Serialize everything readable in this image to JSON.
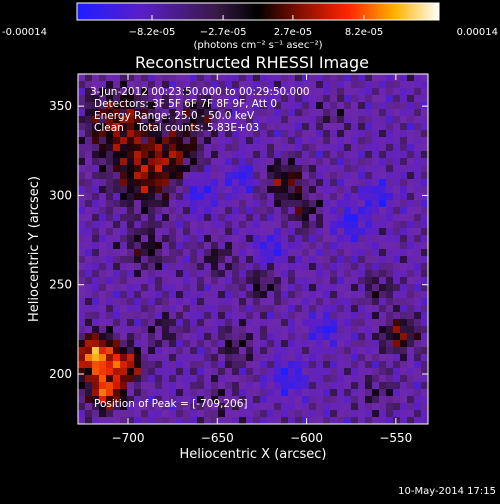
{
  "chart_data": {
    "type": "heatmap",
    "title": "Reconstructed RHESSI Image",
    "xlabel": "Heliocentric X (arcsec)",
    "ylabel": "Heliocentric Y (arcsec)",
    "xlim": [
      -728,
      -532
    ],
    "ylim": [
      172,
      368
    ],
    "x_ticks": [
      -700,
      -650,
      -600,
      -550
    ],
    "x_tick_labels": [
      "−700",
      "−650",
      "−600",
      "−550"
    ],
    "y_ticks": [
      200,
      250,
      300,
      350
    ],
    "y_tick_labels": [
      "200",
      "250",
      "300",
      "350"
    ],
    "colorbar": {
      "min": -0.00014,
      "max": 0.00014,
      "tick_values": [
        -0.00014,
        -8.2e-05,
        -2.7e-05,
        2.7e-05,
        8.2e-05,
        0.00014
      ],
      "tick_labels": [
        "-0.00014",
        "−8.2e-05",
        "−2.7e-05",
        "2.7e-05",
        "8.2e-05",
        "0.00014"
      ],
      "units": "(photons cm⁻² s⁻¹ asec⁻²)"
    },
    "annotations": [
      "3-Jun-2012 00:23:50.000 to 00:29:50.000",
      "Detectors: 3F 5F 6F 7F 8F 9F, Att 0",
      "Energy Range: 25.0 - 50.0 keV",
      "Clean    Total counts: 5.83E+03"
    ],
    "peak_label": "Position of Peak = [-709,206]",
    "peak": {
      "x": -709,
      "y": 206
    }
  },
  "footer": "10-May-2014 17:15"
}
